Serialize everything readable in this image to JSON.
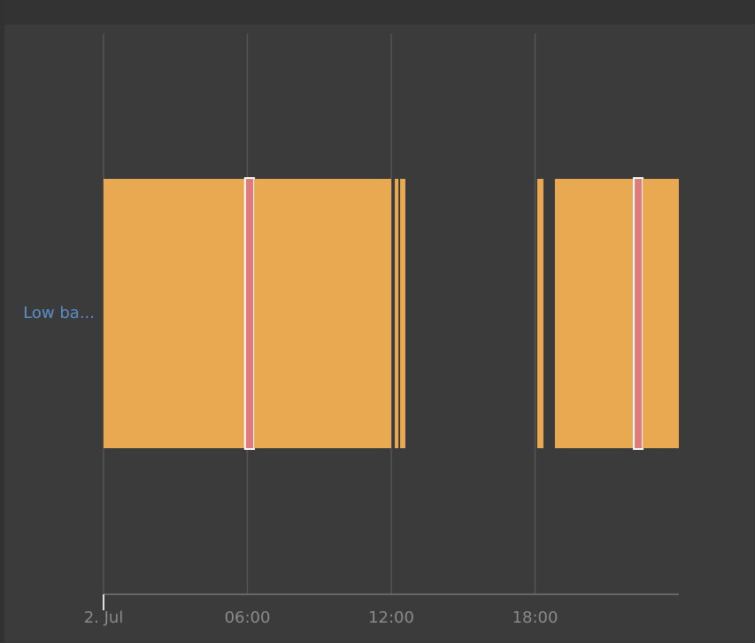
{
  "chart_data": {
    "type": "timeline",
    "row_label": "Low ba...",
    "xlim": [
      0,
      24
    ],
    "xticks": [
      {
        "value": 0,
        "label": "2. Jul"
      },
      {
        "value": 6,
        "label": "06:00"
      },
      {
        "value": 12,
        "label": "12:00"
      },
      {
        "value": 18,
        "label": "18:00"
      }
    ],
    "grid": true,
    "segments": [
      {
        "start": 0,
        "end": 5.9,
        "color": "#e8a951"
      },
      {
        "start": 5.9,
        "end": 6.28,
        "color": "#e07b7b"
      },
      {
        "start": 6.28,
        "end": 12.0,
        "color": "#e8a951"
      },
      {
        "start": 12.15,
        "end": 12.3,
        "color": "#e8a951"
      },
      {
        "start": 12.37,
        "end": 12.59,
        "color": "#e8a951"
      },
      {
        "start": 18.09,
        "end": 18.35,
        "color": "#e8a951"
      },
      {
        "start": 18.83,
        "end": 22.12,
        "color": "#e8a951"
      },
      {
        "start": 22.12,
        "end": 22.49,
        "color": "#e07b7b"
      },
      {
        "start": 22.49,
        "end": 24,
        "color": "#e8a951"
      }
    ]
  }
}
